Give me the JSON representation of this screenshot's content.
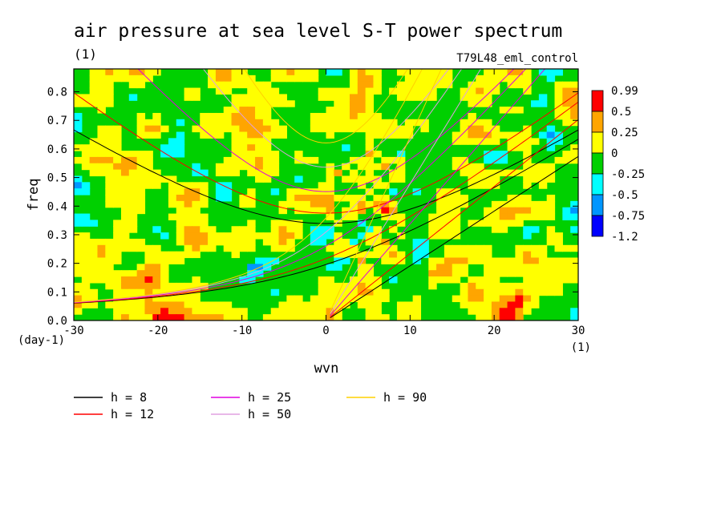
{
  "chart_data": {
    "type": "heatmap",
    "title": "air pressure at sea level S-T power spectrum",
    "units": "(1)",
    "experiment": "T79L48_eml_control",
    "xlabel": "wvn",
    "xunits": "(1)",
    "ylabel": "freq",
    "yunits": "(day-1)",
    "xlim": [
      -30,
      30
    ],
    "ylim": [
      0,
      0.88
    ],
    "x_ticks": [
      -30,
      -20,
      -10,
      0,
      10,
      20,
      30
    ],
    "x_tick_labels": [
      "-30",
      "-20",
      "-10",
      "0",
      "10",
      "20",
      "30"
    ],
    "y_ticks": [
      0,
      0.1,
      0.2,
      0.3,
      0.4,
      0.5,
      0.6,
      0.7,
      0.8
    ],
    "y_tick_labels": [
      "0.0",
      "0.1",
      "0.2",
      "0.3",
      "0.4",
      "0.5",
      "0.6",
      "0.7",
      "0.8"
    ],
    "colorbar": {
      "labels": [
        "0.99",
        "0.5",
        "0.25",
        "0",
        "-0.25",
        "-0.5",
        "-0.75",
        "-1.2"
      ],
      "colors": [
        "#ff0000",
        "#ffa500",
        "#ffff00",
        "#00d000",
        "#00ffff",
        "#0096ff",
        "#0000ff"
      ]
    },
    "dispersion_curves": [
      {
        "label": "h =  8",
        "color": "#000000"
      },
      {
        "label": "h = 12",
        "color": "#ff0000"
      },
      {
        "label": "h = 25",
        "color": "#e000e0"
      },
      {
        "label": "h = 50",
        "color": "#e0a0e0"
      },
      {
        "label": "h = 90",
        "color": "#ffd000"
      }
    ],
    "field_classes": [
      "green",
      "yellow",
      "orange",
      "cyan",
      "blue",
      "red"
    ],
    "field_background": "#00d000"
  }
}
